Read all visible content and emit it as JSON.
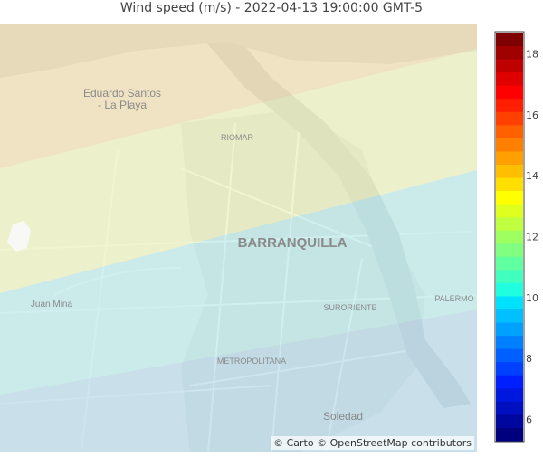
{
  "title": "Wind speed (m/s) - 2022-04-13 19:00:00 GMT-5",
  "attribution": "© Carto © OpenStreetMap contributors",
  "places": {
    "eduardo_line1": "Eduardo Santos",
    "eduardo_line2": "- La Playa",
    "riomar": "RIOMAR",
    "barranquilla": "BARRANQUILLA",
    "juan_mina": "Juan Mina",
    "suroriente": "SURORIENTE",
    "palermo": "PALERMO",
    "metropolitana": "METROPOLITANA",
    "soledad": "Soledad"
  },
  "contour_bands": [
    {
      "label_range": "wind 6-8 m/s",
      "color": "#aed8ef"
    },
    {
      "label_range": "wind 8-10 m/s",
      "color": "#b2ecef"
    },
    {
      "label_range": "wind 10-12 m/s",
      "color": "#eef6b4"
    },
    {
      "label_range": "wind 12-14 m/s",
      "color": "#f5dfa6"
    }
  ],
  "colorbar": {
    "ticks": [
      "18",
      "16",
      "14",
      "12",
      "10",
      "8",
      "6"
    ],
    "min": 5.3,
    "max": 18.7,
    "colors": [
      "#00007f",
      "#00079f",
      "#000fbf",
      "#0017df",
      "#001fff",
      "#0040ff",
      "#0060ff",
      "#0080ff",
      "#00a0ff",
      "#00c0ff",
      "#00e0ff",
      "#1fffdf",
      "#40ffbf",
      "#60ff9f",
      "#80ff80",
      "#9fff60",
      "#bfff40",
      "#dfff1f",
      "#ffff00",
      "#ffdf00",
      "#ffbf00",
      "#ff9f00",
      "#ff8000",
      "#ff6000",
      "#ff4000",
      "#ff1f00",
      "#ff0000",
      "#df0000",
      "#bf0000",
      "#9f0000",
      "#7f0000"
    ]
  }
}
